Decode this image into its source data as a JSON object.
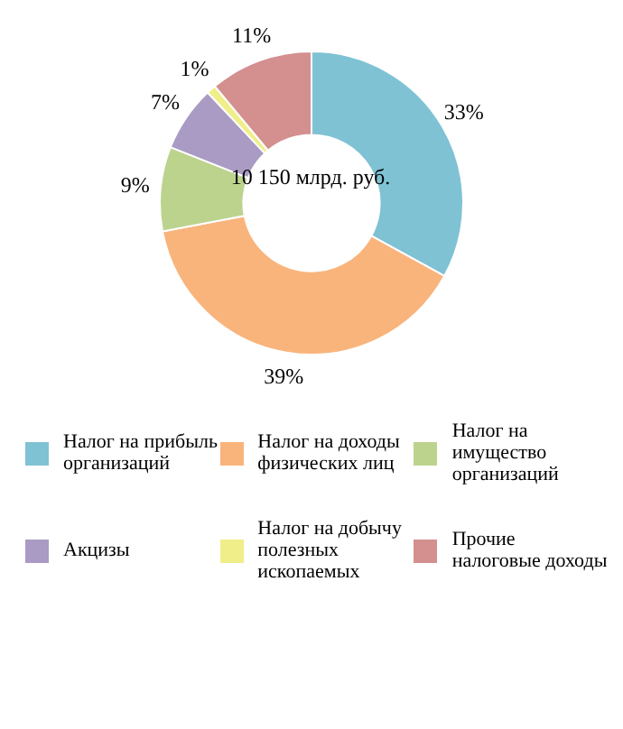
{
  "chart_data": {
    "type": "donut",
    "categories": [
      "Налог на прибыль организаций",
      "Налог на доходы физических лиц",
      "Налог на имущество организаций",
      "Акцизы",
      "Налог на добычу полезных ископаемых",
      "Прочие налоговые доходы"
    ],
    "values": [
      33,
      39,
      9,
      7,
      1,
      11
    ],
    "value_labels": [
      "33%",
      "39%",
      "9%",
      "7%",
      "1%",
      "11%"
    ],
    "colors": [
      "#7fc2d4",
      "#f9b47c",
      "#bcd38e",
      "#a99bc4",
      "#f0ee88",
      "#d48f8f"
    ],
    "annotations": [
      "10 150 млрд. руб."
    ],
    "legend": "bottom"
  }
}
